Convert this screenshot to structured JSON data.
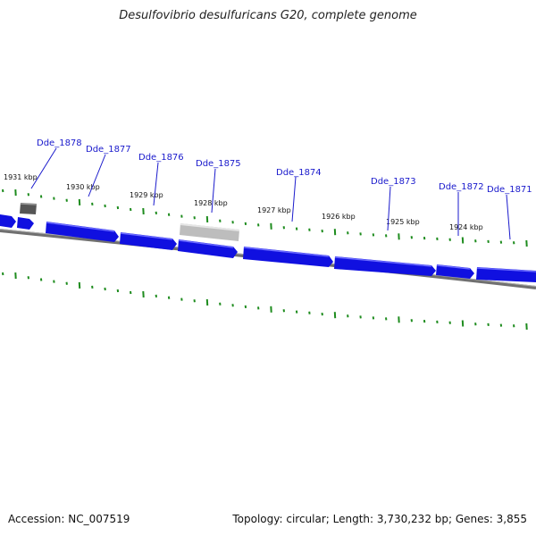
{
  "title": "Desulfovibrio desulfuricans G20, complete genome",
  "footer": {
    "accession": "Accession: NC_007519",
    "summary": "Topology: circular; Length: 3,730,232 bp; Genes: 3,855"
  },
  "colors": {
    "gene_forward": "#1010e0",
    "gene_rna": "#555555",
    "gene_pseudo": "#bbbbbb",
    "backbone": "#808080",
    "tick": "#1e8c1e",
    "label": "#1a1acc"
  },
  "scale_labels": [
    "1931 kbp",
    "1930 kbp",
    "1929 kbp",
    "1928 kbp",
    "1927 kbp",
    "1926 kbp",
    "1925 kbp",
    "1924 kbp"
  ],
  "gene_labels": [
    "Dde_1878",
    "Dde_1877",
    "Dde_1876",
    "Dde_1875",
    "Dde_1874",
    "Dde_1873",
    "Dde_1872",
    "Dde_1871"
  ]
}
